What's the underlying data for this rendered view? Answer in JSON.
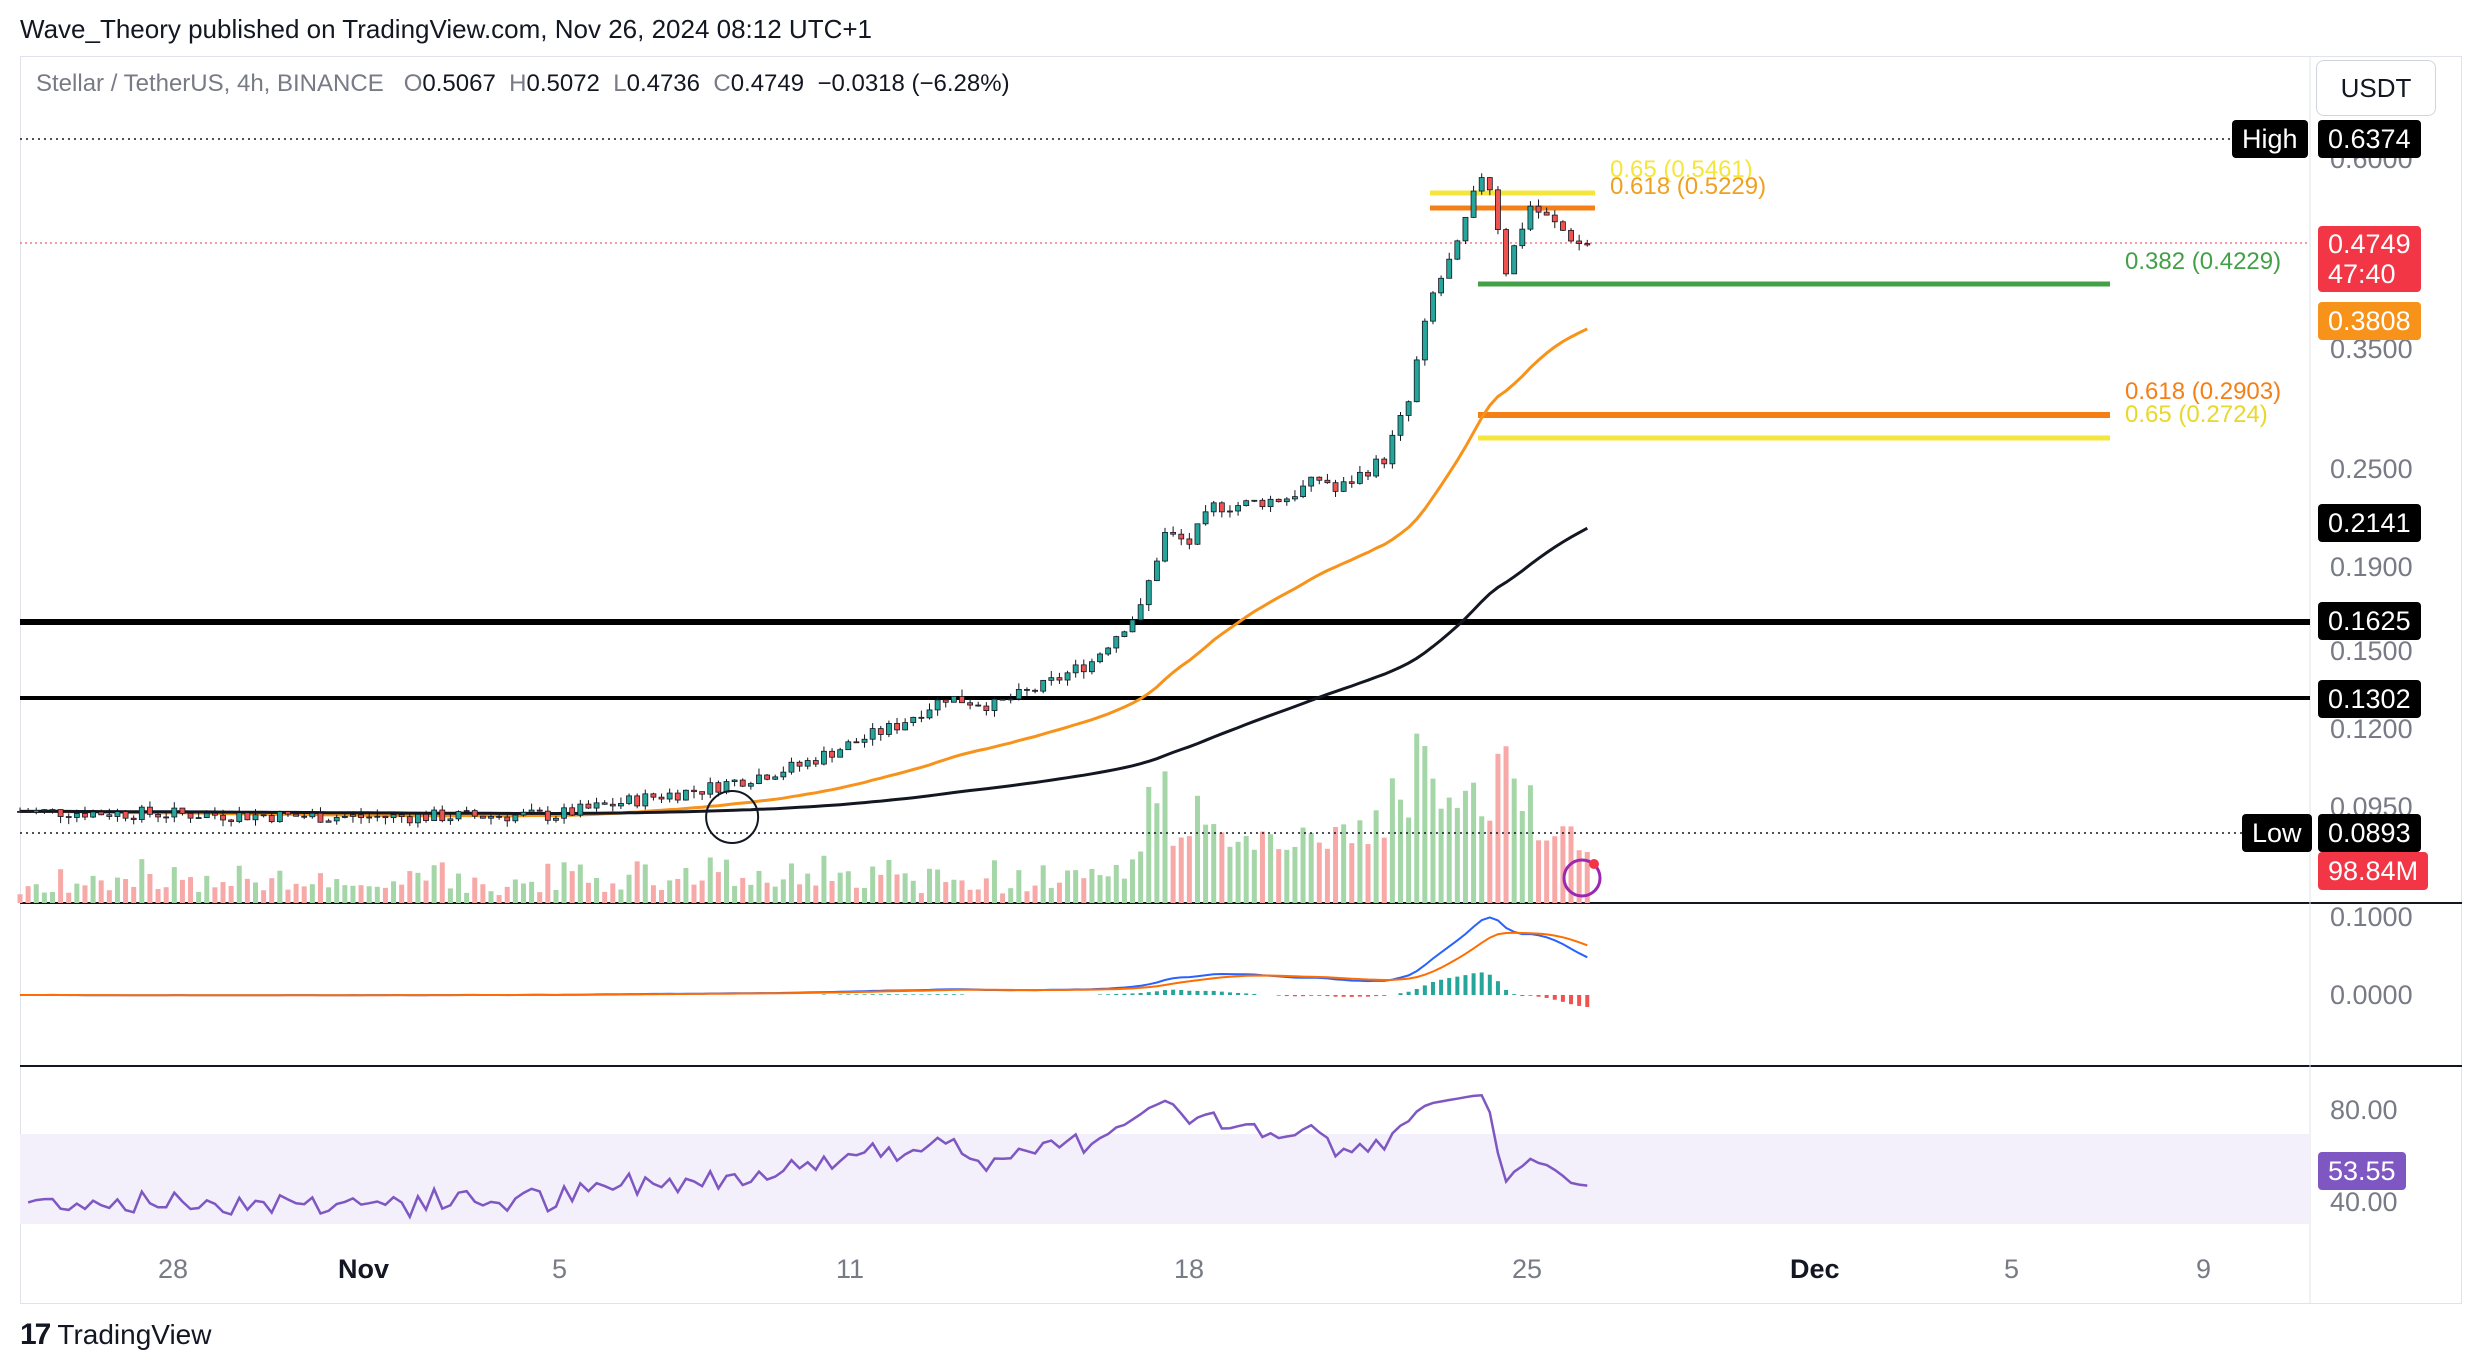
{
  "header": {
    "publish_text": "Wave_Theory published on TradingView.com, Nov 26, 2024 08:12 UTC+1",
    "symbol": "Stellar / TetherUS, 4h, BINANCE",
    "o_label": "O",
    "o_value": "0.5067",
    "h_label": "H",
    "h_value": "0.5072",
    "l_label": "L",
    "l_value": "0.4736",
    "c_label": "C",
    "c_value": "0.4749",
    "change": "−0.0318 (−6.28%)",
    "currency": "USDT"
  },
  "price_axis_labels": [
    "0.6000",
    "0.3500",
    "0.2500",
    "0.1900",
    "0.1500",
    "0.1200",
    "0.0950",
    "0.1000",
    "0.0000",
    "80.00",
    "40.00"
  ],
  "tags": {
    "high_label": "High",
    "high_value": "0.6374",
    "last_price": "0.4749",
    "countdown": "47:40",
    "ema50_value": "0.3808",
    "ema200_value": "0.2141",
    "support1": "0.1625",
    "support2": "0.1302",
    "low_label": "Low",
    "low_value": "0.0893",
    "volume": "98.84M",
    "rsi_value": "53.55"
  },
  "fib_labels": {
    "upper_065": "0.65 (0.5461)",
    "upper_0618": "0.618 (0.5229)",
    "lower_0382": "0.382 (0.4229)",
    "lower_0618": "0.618 (0.2903)",
    "lower_065": "0.65 (0.2724)"
  },
  "time_axis": [
    "28",
    "Nov",
    "5",
    "11",
    "18",
    "25",
    "Dec",
    "5",
    "9"
  ],
  "footer": {
    "brand": "TradingView",
    "logo_mark": "17"
  },
  "colors": {
    "up": "#26a69a",
    "down": "#ef5350",
    "ema50": "#f7931a",
    "ema200": "#131722",
    "fib_yellow": "#f5e63c",
    "fib_orange": "#f57f17",
    "fib_green": "#43a047",
    "macd": "#2962ff",
    "signal": "#ff6d00",
    "rsi": "#7e57c2"
  },
  "chart_data": {
    "type": "candlestick",
    "title": "Stellar / TetherUS, 4h, BINANCE",
    "y_scale": "log",
    "x_range": [
      "2024-10-25",
      "2024-12-11"
    ],
    "anchors": {
      "start": {
        "date": "2024-10-25",
        "price": 0.092
      },
      "breakout": {
        "date": "2024-11-08",
        "price": 0.095
      },
      "step1": {
        "date": "2024-11-13",
        "price": 0.13
      },
      "step2": {
        "date": "2024-11-17",
        "price": 0.155
      },
      "step3": {
        "date": "2024-11-18",
        "price": 0.215
      },
      "step4": {
        "date": "2024-11-20",
        "price": 0.235
      },
      "step5": {
        "date": "2024-11-22",
        "price": 0.25
      },
      "step6": {
        "date": "2024-11-23",
        "price": 0.43
      },
      "high": {
        "date": "2024-11-24",
        "price": 0.6374
      },
      "last": {
        "date": "2024-11-26",
        "price": 0.4749
      }
    },
    "horizontal_levels": [
      {
        "label": "0.1625",
        "price": 0.1625
      },
      {
        "label": "0.1302",
        "price": 0.1302
      }
    ],
    "fibonacci": [
      {
        "label": "0.65 (0.5461)",
        "price": 0.5461
      },
      {
        "label": "0.618 (0.5229)",
        "price": 0.5229
      },
      {
        "label": "0.382 (0.4229)",
        "price": 0.4229
      },
      {
        "label": "0.618 (0.2903)",
        "price": 0.2903
      },
      {
        "label": "0.65 (0.2724)",
        "price": 0.2724
      }
    ],
    "ema50_last": 0.3808,
    "ema200_last": 0.2141,
    "volume_last": "98.84M",
    "macd_axis": [
      0.1,
      0.0
    ],
    "rsi_axis": [
      80,
      40
    ],
    "rsi_last": 53.55
  }
}
